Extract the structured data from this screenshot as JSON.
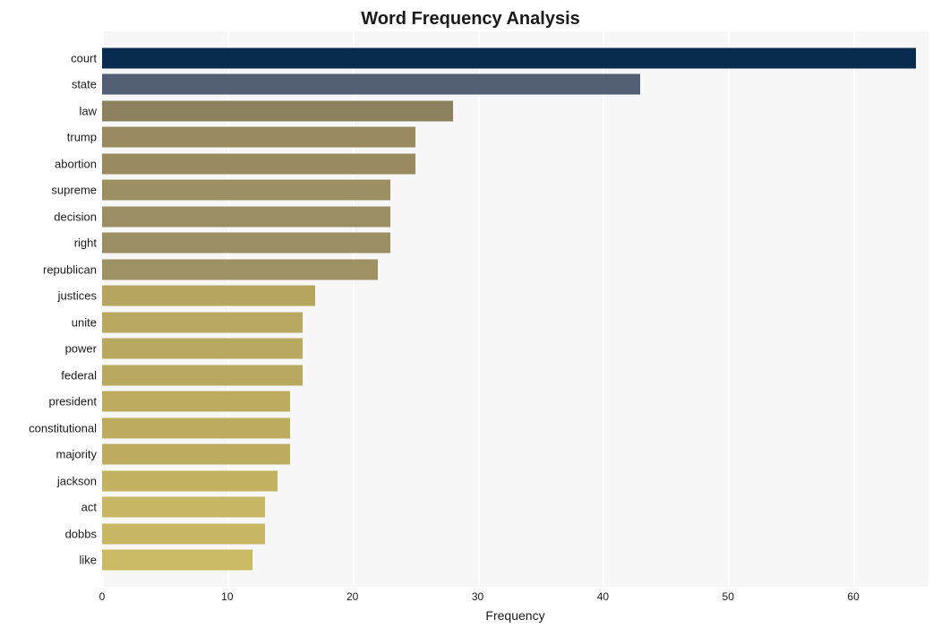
{
  "chart": {
    "type": "bar-horizontal",
    "title": "Word Frequency Analysis",
    "title_fontsize": 20,
    "title_fontweight": 700,
    "background_color": "#ffffff",
    "plot_background_color": "#f7f7f7",
    "grid_color": "#ffffff",
    "grid_linewidth": 2,
    "xlabel": "Frequency",
    "xlabel_fontsize": 14,
    "ytick_fontsize": 13,
    "xtick_fontsize": 12,
    "xlim": [
      0,
      66
    ],
    "xtick_step": 10,
    "xticks": [
      0,
      10,
      20,
      30,
      40,
      50,
      60
    ],
    "bar_height_ratio": 0.78,
    "categories": [
      "court",
      "state",
      "law",
      "trump",
      "abortion",
      "supreme",
      "decision",
      "right",
      "republican",
      "justices",
      "unite",
      "power",
      "federal",
      "president",
      "constitutional",
      "majority",
      "jackson",
      "act",
      "dobbs",
      "like"
    ],
    "values": [
      65,
      43,
      28,
      25,
      25,
      23,
      23,
      23,
      22,
      17,
      16,
      16,
      16,
      15,
      15,
      15,
      14,
      13,
      13,
      12
    ],
    "bar_colors": [
      "#0a2b50",
      "#525e73",
      "#8c8260",
      "#998a5f",
      "#998a5f",
      "#9b8f63",
      "#9b8f63",
      "#9b8f63",
      "#9e9163",
      "#b5a55f",
      "#b9a85f",
      "#b9a85f",
      "#b9a85f",
      "#bdac60",
      "#bdac60",
      "#bdac60",
      "#c2b261",
      "#c7b663",
      "#c7b663",
      "#cbba64"
    ]
  }
}
